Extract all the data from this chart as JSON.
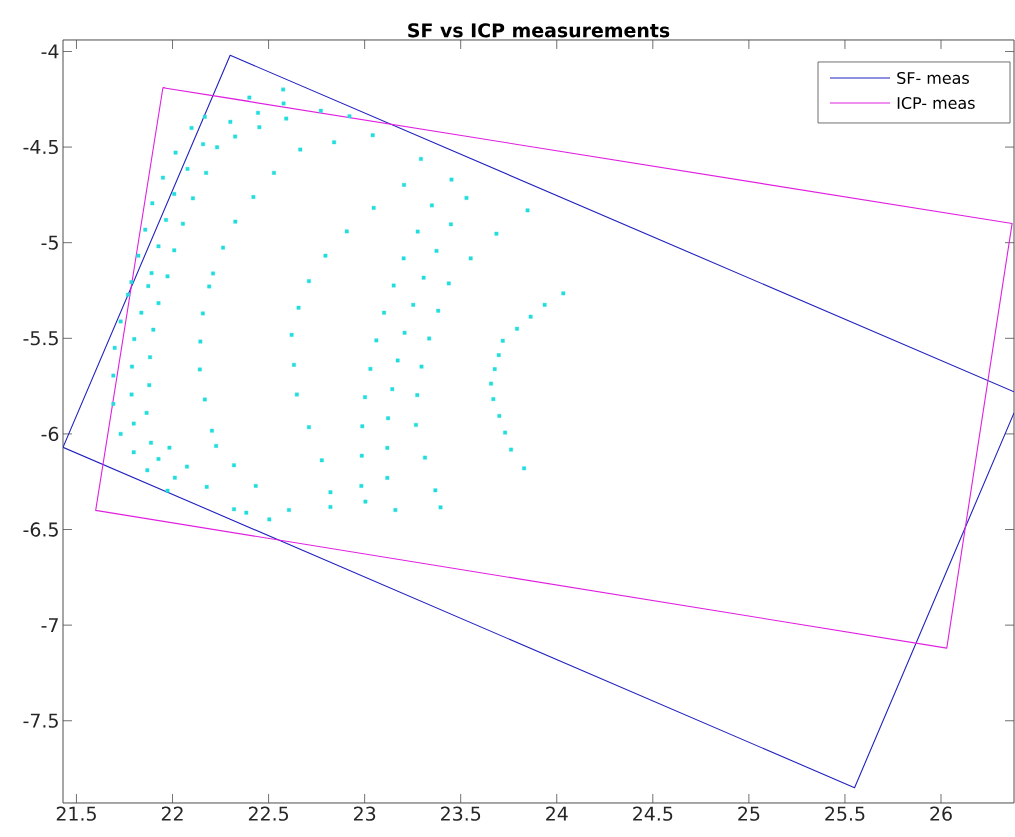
{
  "chart_data": {
    "type": "line",
    "title": "SF vs ICP measurements",
    "xlim": [
      21.43,
      26.38
    ],
    "ylim": [
      -7.93,
      -3.94
    ],
    "xticks": [
      21.5,
      22,
      22.5,
      23,
      23.5,
      24,
      24.5,
      25,
      25.5,
      26
    ],
    "yticks": [
      -4,
      -4.5,
      -5,
      -5.5,
      -6,
      -6.5,
      -7,
      -7.5
    ],
    "grid": false,
    "legend": "top right",
    "series": [
      {
        "type": "line",
        "name": "SF- meas",
        "color": "#2020c0",
        "marker": "none",
        "line_style": "solid",
        "x": [
          26.38,
          25.55,
          21.43,
          22.3,
          26.38
        ],
        "values": [
          -5.89,
          -7.85,
          -6.07,
          -4.02,
          -5.78
        ]
      },
      {
        "type": "line",
        "name": "ICP- meas",
        "color": "#e020e0",
        "marker": "none",
        "line_style": "solid",
        "x": [
          21.95,
          26.37,
          26.03,
          21.6,
          21.95,
          22.4
        ],
        "values": [
          -4.19,
          -4.9,
          -7.12,
          -6.4,
          -4.19,
          -4.26
        ]
      },
      {
        "type": "scatter",
        "marker": "square",
        "color": "#22dddd",
        "x": [
          23.293,
          23.205,
          23.047,
          22.907,
          22.796,
          22.71,
          22.656,
          22.62,
          22.632,
          22.647,
          22.71,
          22.777,
          22.822,
          22.822,
          23.452,
          23.35,
          23.276,
          23.203,
          23.151,
          23.101,
          23.061,
          23.03,
          23.002,
          22.988,
          22.985,
          22.983,
          23.004,
          23.53,
          23.449,
          23.374,
          23.307,
          23.253,
          23.208,
          23.172,
          23.144,
          23.122,
          23.118,
          23.118,
          23.16,
          23.848,
          23.686,
          23.552,
          23.438,
          23.383,
          23.336,
          23.296,
          23.274,
          23.267,
          23.314,
          23.368,
          23.395,
          24.034,
          23.937,
          23.864,
          23.793,
          23.719,
          23.698,
          23.677,
          23.658,
          23.67,
          23.701,
          23.731,
          23.762,
          23.83,
          22.099,
          22.016,
          21.95,
          21.895,
          21.858,
          21.822,
          21.786,
          21.768,
          21.73,
          21.699,
          21.692,
          21.692,
          21.73,
          22.168,
          22.159,
          22.078,
          22.009,
          21.966,
          21.927,
          21.891,
          21.874,
          21.838,
          21.801,
          21.789,
          21.787,
          21.798,
          21.798,
          21.869,
          22.301,
          22.232,
          22.175,
          22.106,
          22.054,
          22.009,
          21.974,
          21.927,
          21.9,
          21.883,
          21.879,
          21.865,
          21.888,
          21.927,
          22.012,
          22.665,
          22.528,
          22.421,
          22.327,
          22.263,
          22.211,
          22.191,
          22.158,
          22.145,
          22.142,
          22.168,
          22.205,
          22.227,
          22.576,
          22.578,
          22.592,
          22.4,
          22.445,
          22.772,
          22.921,
          22.841,
          23.042,
          22.452,
          22.326,
          22.32,
          22.075,
          22.178,
          22.433,
          22.32,
          22.384,
          22.504,
          22.606,
          21.984,
          21.974
        ],
        "values": [
          -4.562,
          -4.698,
          -4.818,
          -4.941,
          -5.068,
          -5.201,
          -5.34,
          -5.482,
          -5.639,
          -5.794,
          -5.965,
          -6.138,
          -6.305,
          -6.382,
          -4.67,
          -4.805,
          -4.942,
          -5.082,
          -5.224,
          -5.366,
          -5.511,
          -5.66,
          -5.808,
          -5.96,
          -6.114,
          -6.272,
          -6.354,
          -4.766,
          -4.904,
          -5.043,
          -5.183,
          -5.325,
          -5.471,
          -5.616,
          -5.766,
          -5.918,
          -6.073,
          -6.23,
          -6.398,
          -4.831,
          -4.953,
          -5.082,
          -5.213,
          -5.356,
          -5.501,
          -5.648,
          -5.797,
          -5.953,
          -6.124,
          -6.295,
          -6.384,
          -5.265,
          -5.325,
          -5.387,
          -5.45,
          -5.513,
          -5.588,
          -5.661,
          -5.737,
          -5.818,
          -5.906,
          -5.993,
          -6.082,
          -6.18,
          -4.4,
          -4.529,
          -4.66,
          -4.794,
          -4.932,
          -5.068,
          -5.206,
          -5.272,
          -5.412,
          -5.55,
          -5.695,
          -5.843,
          -6.0,
          -4.342,
          -4.485,
          -4.614,
          -4.745,
          -4.881,
          -5.019,
          -5.159,
          -5.227,
          -5.366,
          -5.504,
          -5.648,
          -5.794,
          -5.946,
          -6.096,
          -6.19,
          -4.368,
          -4.501,
          -4.635,
          -4.768,
          -4.901,
          -5.04,
          -5.176,
          -5.316,
          -5.455,
          -5.599,
          -5.745,
          -5.89,
          -6.046,
          -6.131,
          -6.229,
          -4.513,
          -4.635,
          -4.761,
          -4.89,
          -5.026,
          -5.161,
          -5.229,
          -5.37,
          -5.517,
          -5.663,
          -5.82,
          -5.983,
          -6.063,
          -4.199,
          -4.272,
          -4.351,
          -4.241,
          -4.321,
          -4.31,
          -4.339,
          -4.475,
          -4.438,
          -4.396,
          -4.445,
          -6.164,
          -6.171,
          -6.277,
          -6.272,
          -6.394,
          -6.412,
          -6.447,
          -6.398,
          -6.072,
          -6.297
        ]
      }
    ]
  }
}
